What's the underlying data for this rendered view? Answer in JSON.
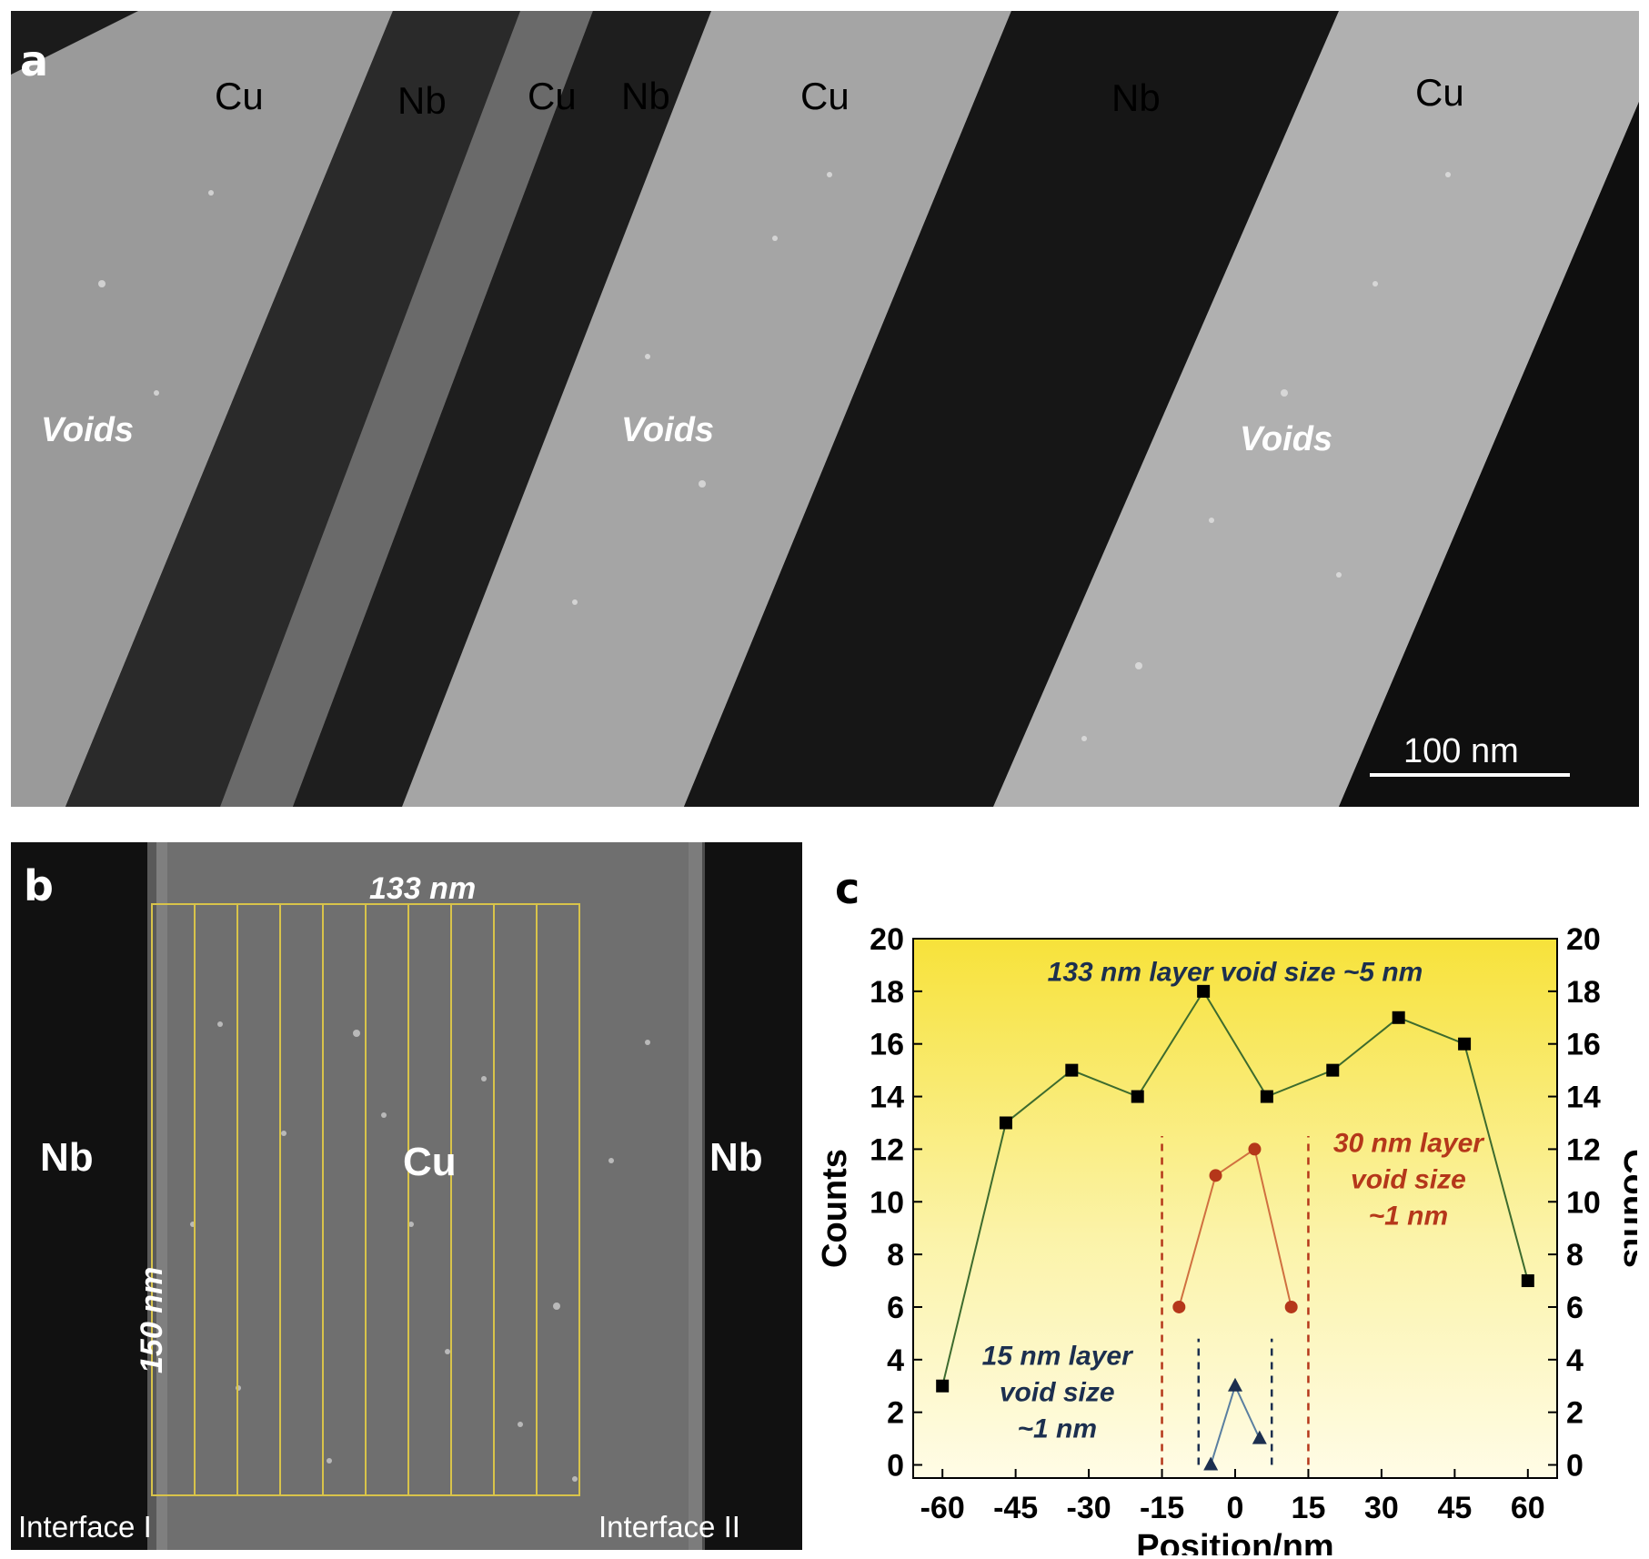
{
  "panel_a": {
    "letter": "a",
    "layers": [
      "Cu",
      "Nb",
      "Cu",
      "Nb",
      "Cu",
      "Nb",
      "Cu"
    ],
    "voids_label": "Voids",
    "scale_bar": "100 nm"
  },
  "panel_b": {
    "letter": "b",
    "left_layer": "Nb",
    "center_layer": "Cu",
    "right_layer": "Nb",
    "width_label": "133 nm",
    "height_label": "150 nm",
    "interface_left": "Interface I",
    "interface_right": "Interface II",
    "grid_color": "#d8c34a",
    "grid_columns": 10
  },
  "panel_c": {
    "letter": "c"
  },
  "chart_data": {
    "type": "line",
    "xlabel": "Position/nm",
    "ylabel": "Counts",
    "ylabel_right": "Counts",
    "xlim": [
      -66,
      66
    ],
    "ylim": [
      -0.5,
      20
    ],
    "xticks": [
      -60,
      -45,
      -30,
      -15,
      0,
      15,
      30,
      45,
      60
    ],
    "yticks": [
      0,
      2,
      4,
      6,
      8,
      10,
      12,
      14,
      16,
      18,
      20
    ],
    "background": "yellow-gradient",
    "series": [
      {
        "name": "133 nm layer void size ~5 nm",
        "marker": "square",
        "color": "#000000",
        "line_color": "#3d6b2e",
        "x": [
          -60,
          -47,
          -33.5,
          -20,
          -6.5,
          6.5,
          20,
          33.5,
          47,
          60
        ],
        "y": [
          3,
          13,
          15,
          14,
          18,
          14,
          15,
          17,
          16,
          7
        ]
      },
      {
        "name": "30 nm layer void size ~1 nm",
        "marker": "circle",
        "color": "#b5371a",
        "line_color": "#d07040",
        "x": [
          -11.5,
          -4,
          4,
          11.5
        ],
        "y": [
          6,
          11,
          12,
          6
        ]
      },
      {
        "name": "15 nm layer void size ~1 nm",
        "marker": "triangle",
        "color": "#1c2f4f",
        "line_color": "#5a7fa0",
        "x": [
          -5,
          0,
          5
        ],
        "y": [
          0,
          3,
          1
        ]
      }
    ],
    "annotations": [
      {
        "text": "133 nm layer void size ~5 nm",
        "color": "#1c2f4f"
      },
      {
        "text_lines": [
          "30 nm layer",
          "void size",
          "~1 nm"
        ],
        "color": "#b5371a"
      },
      {
        "text_lines": [
          "15 nm layer",
          "void size",
          "~1 nm"
        ],
        "color": "#1c2f4f"
      }
    ],
    "dashed_lines": [
      {
        "x": -15,
        "y_range": [
          0,
          12.5
        ],
        "color": "#b5371a"
      },
      {
        "x": 15,
        "y_range": [
          0,
          12.5
        ],
        "color": "#b5371a"
      },
      {
        "x": -7.5,
        "y_range": [
          0,
          4.8
        ],
        "color": "#1c2f4f"
      },
      {
        "x": 7.5,
        "y_range": [
          0,
          4.8
        ],
        "color": "#1c2f4f"
      }
    ]
  }
}
